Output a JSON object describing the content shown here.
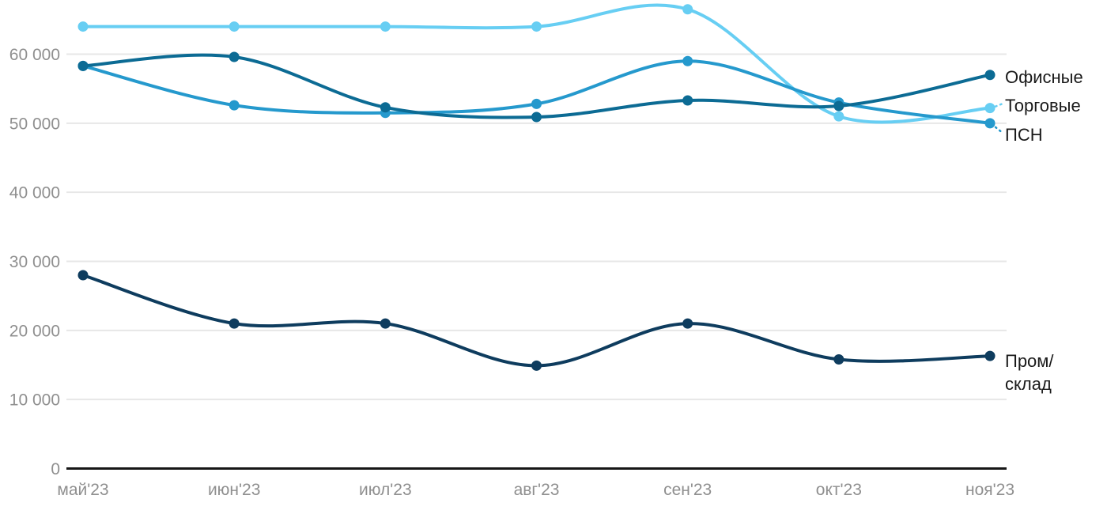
{
  "chart_data": {
    "type": "line",
    "title": "",
    "xlabel": "",
    "ylabel": "",
    "grid": true,
    "legend_position": "right-inline",
    "categories": [
      "май'23",
      "июн'23",
      "июл'23",
      "авг'23",
      "сен'23",
      "окт'23",
      "ноя'23"
    ],
    "series": [
      {
        "key": "torgovye",
        "name": "Торговые",
        "color": "#67cef3",
        "values": [
          64000,
          64000,
          64000,
          64000,
          66500,
          51000,
          52200
        ],
        "label_leader": "up"
      },
      {
        "key": "psn",
        "name": "ПСН",
        "color": "#2599cd",
        "values": [
          58300,
          52600,
          51500,
          52800,
          59000,
          53000,
          50000
        ],
        "label_leader": "down"
      },
      {
        "key": "ofisnye",
        "name": "Офисные",
        "color": "#0c6b94",
        "values": [
          58300,
          59600,
          52300,
          50900,
          53300,
          52500,
          57000
        ],
        "label_leader": null
      },
      {
        "key": "prom_sklad",
        "name": "Пром/\nсклад",
        "color": "#0e3c5e",
        "values": [
          28000,
          21000,
          21000,
          14900,
          21000,
          15800,
          16300
        ],
        "label_leader": null
      }
    ],
    "y_axis": {
      "ticks": [
        0,
        10000,
        20000,
        30000,
        40000,
        50000,
        60000
      ],
      "tick_labels": [
        "0",
        "10 000",
        "20 000",
        "30 000",
        "40 000",
        "50 000",
        "60 000"
      ],
      "range": [
        0,
        68000
      ]
    },
    "colors": {
      "gridline": "#e7e7e7",
      "axis_line": "#161616",
      "tick_text": "#8f8f8f",
      "label_text": "#1a1a1a",
      "background": "#ffffff"
    }
  }
}
